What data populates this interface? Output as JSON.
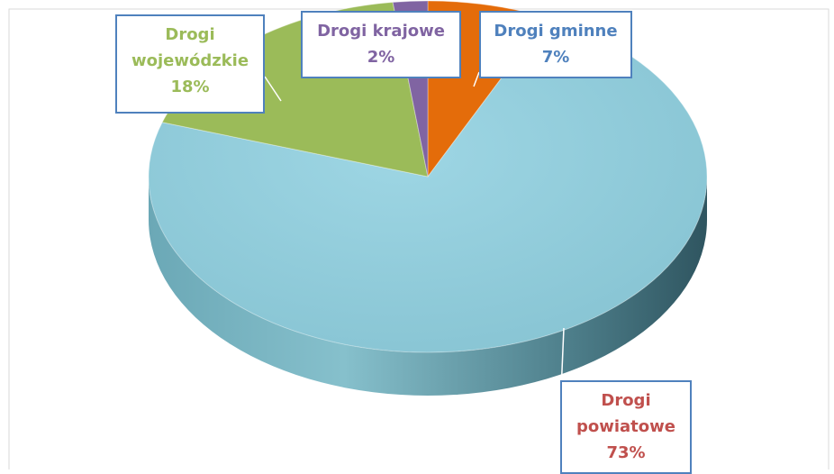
{
  "chart_data": {
    "type": "pie",
    "title": "",
    "slices": [
      {
        "label_lines": [
          "Drogi",
          "powiatowe"
        ],
        "value_text": "73%",
        "value": 73,
        "color": "#93cddd",
        "text_color": "#c0504d"
      },
      {
        "label_lines": [
          "Drogi",
          "wojewódzkie"
        ],
        "value_text": "18%",
        "value": 18,
        "color": "#9bbb59",
        "text_color": "#9bbb59"
      },
      {
        "label_lines": [
          "Drogi krajowe"
        ],
        "value_text": "2%",
        "value": 2,
        "color": "#8064a2",
        "text_color": "#8064a2"
      },
      {
        "label_lines": [
          "Drogi gminne"
        ],
        "value_text": "7%",
        "value": 7,
        "color": "#e46c0a",
        "text_color": "#4f81bd"
      }
    ],
    "label_border_color": "#4f81bd",
    "style": "3d"
  }
}
